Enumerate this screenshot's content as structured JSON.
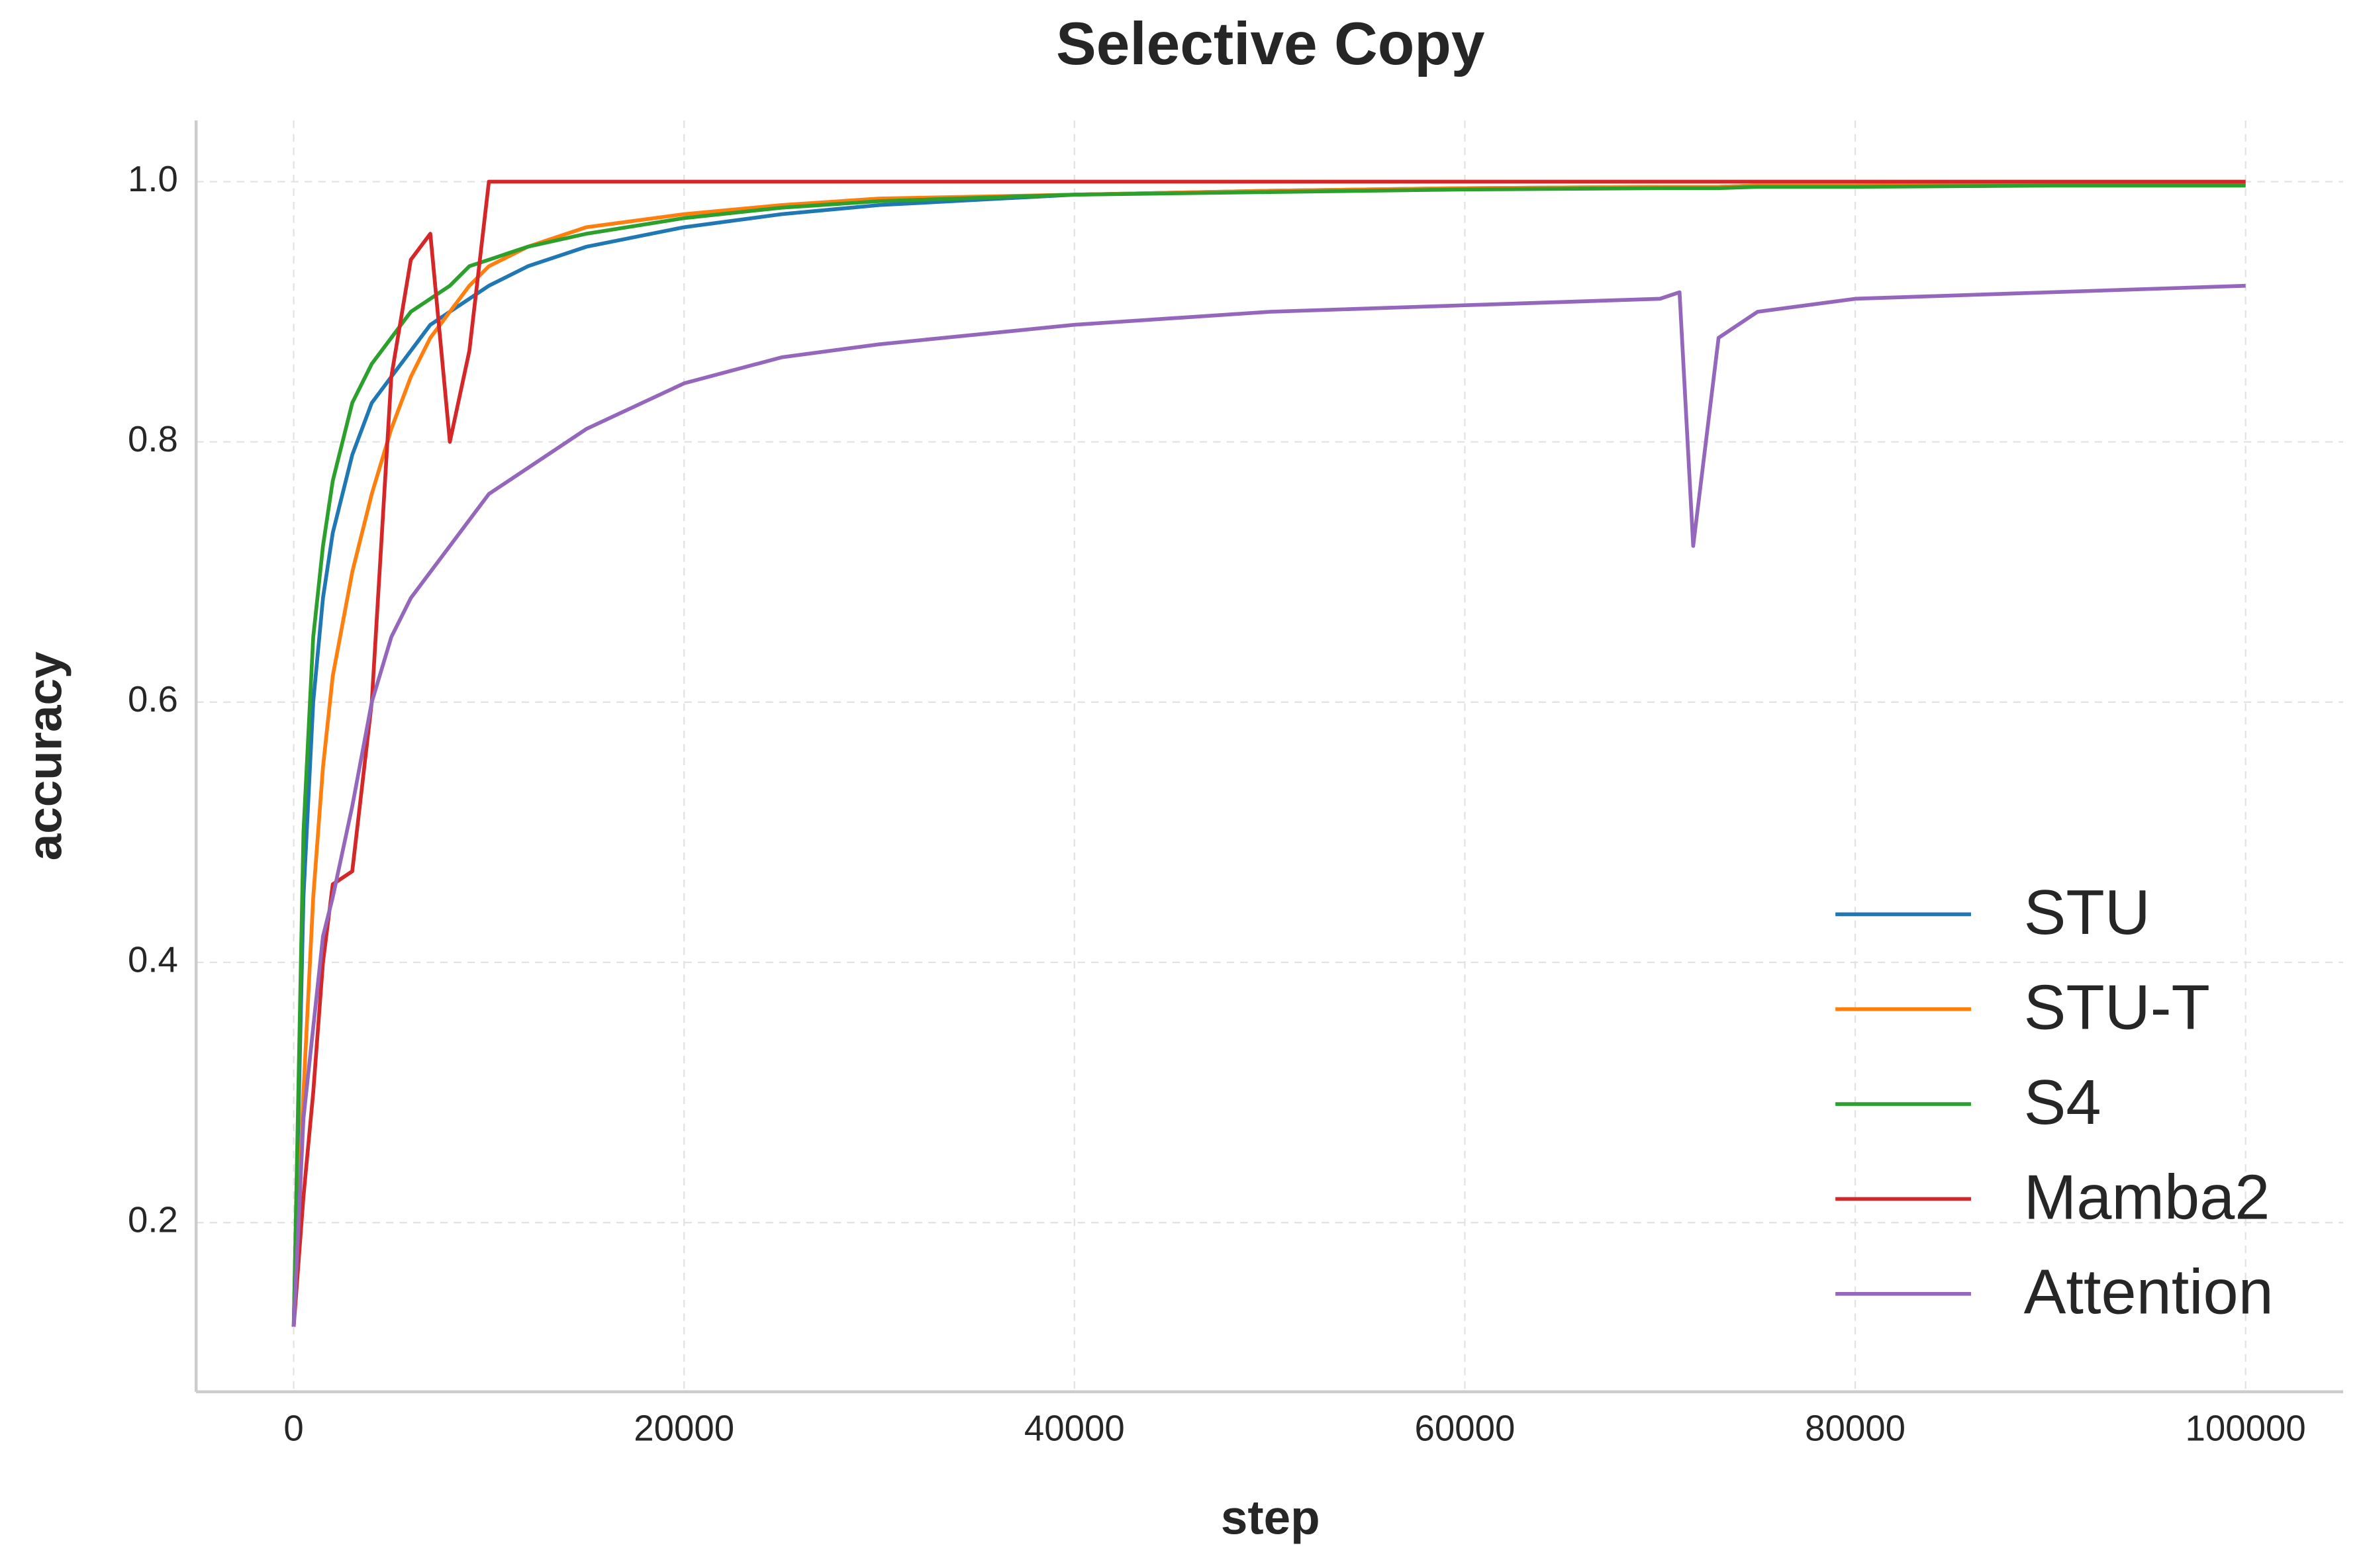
{
  "chart_data": {
    "type": "line",
    "title": "Selective Copy",
    "x_label": "step",
    "y_label": "accuracy",
    "x": [
      0,
      500,
      1000,
      1500,
      2000,
      3000,
      4000,
      5000,
      6000,
      7000,
      8000,
      9000,
      10000,
      12000,
      15000,
      20000,
      25000,
      30000,
      40000,
      50000,
      60000,
      70000,
      71000,
      71700,
      73000,
      75000,
      80000,
      90000,
      100000
    ],
    "series": [
      {
        "name": "STU",
        "color": "#1f77b4",
        "values": [
          0.12,
          0.45,
          0.6,
          0.68,
          0.73,
          0.79,
          0.83,
          0.85,
          0.87,
          0.89,
          0.9,
          0.91,
          0.92,
          0.935,
          0.95,
          0.965,
          0.975,
          0.982,
          0.99,
          0.993,
          0.995,
          0.996,
          0.996,
          0.996,
          0.996,
          0.997,
          0.997,
          0.998,
          0.998
        ]
      },
      {
        "name": "STU-T",
        "color": "#ff7f0e",
        "values": [
          0.12,
          0.3,
          0.45,
          0.55,
          0.62,
          0.7,
          0.76,
          0.81,
          0.85,
          0.88,
          0.9,
          0.92,
          0.935,
          0.95,
          0.965,
          0.975,
          0.982,
          0.987,
          0.99,
          0.993,
          0.995,
          0.996,
          0.996,
          0.996,
          0.996,
          0.997,
          0.997,
          0.998,
          0.999
        ]
      },
      {
        "name": "S4",
        "color": "#2ca02c",
        "values": [
          0.12,
          0.5,
          0.65,
          0.72,
          0.77,
          0.83,
          0.86,
          0.88,
          0.9,
          0.91,
          0.92,
          0.935,
          0.94,
          0.95,
          0.96,
          0.972,
          0.98,
          0.985,
          0.99,
          0.992,
          0.994,
          0.995,
          0.995,
          0.995,
          0.995,
          0.996,
          0.996,
          0.997,
          0.997
        ]
      },
      {
        "name": "Mamba2",
        "color": "#d62728",
        "values": [
          0.12,
          0.22,
          0.3,
          0.4,
          0.46,
          0.47,
          0.6,
          0.85,
          0.94,
          0.96,
          0.8,
          0.87,
          1.0,
          1.0,
          1.0,
          1.0,
          1.0,
          1.0,
          1.0,
          1.0,
          1.0,
          1.0,
          1.0,
          1.0,
          1.0,
          1.0,
          1.0,
          1.0,
          1.0
        ]
      },
      {
        "name": "Attention",
        "color": "#9467bd",
        "values": [
          0.12,
          0.28,
          0.35,
          0.42,
          0.45,
          0.52,
          0.6,
          0.65,
          0.68,
          0.7,
          0.72,
          0.74,
          0.76,
          0.78,
          0.81,
          0.845,
          0.865,
          0.875,
          0.89,
          0.9,
          0.905,
          0.91,
          0.915,
          0.72,
          0.88,
          0.9,
          0.91,
          0.915,
          0.92
        ]
      }
    ],
    "xlim": [
      -5000,
      105000
    ],
    "ylim": [
      0.07,
      1.047
    ],
    "xticks": [
      0,
      20000,
      40000,
      60000,
      80000,
      100000
    ],
    "yticks": [
      0.2,
      0.4,
      0.6,
      0.8,
      {
        "value": 1,
        "label": "1.0"
      }
    ],
    "grid": true,
    "legend": "lower right"
  }
}
